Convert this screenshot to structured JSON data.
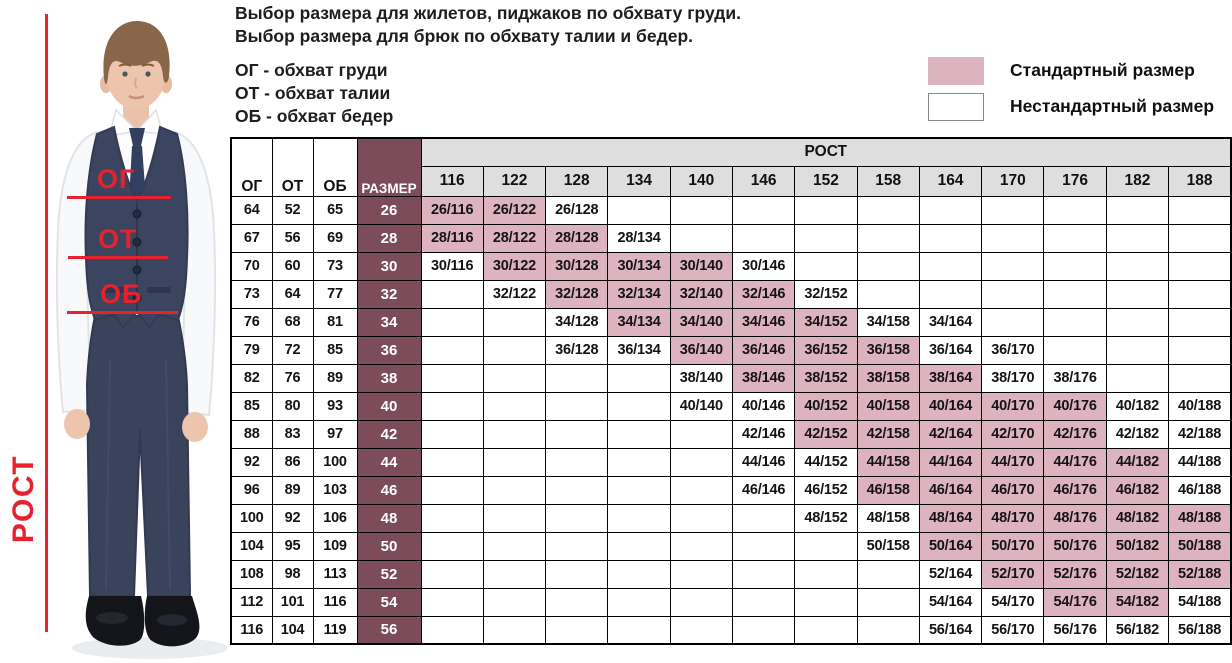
{
  "intro": {
    "line1": "Выбор размера для жилетов, пиджаков по обхвату груди.",
    "line2": "Выбор размера для брюк по обхвату талии и бедер."
  },
  "abbreviations": [
    "ОГ - обхват груди",
    "ОТ - обхват талии",
    "ОБ - обхват бедер"
  ],
  "legend": {
    "items": [
      {
        "label": "Стандартный размер",
        "type": "standard"
      },
      {
        "label": "Нестандартный размер",
        "type": "nonstandard"
      }
    ]
  },
  "figure": {
    "height_label": "РОСТ",
    "chest_label": "ОГ",
    "waist_label": "ОТ",
    "hips_label": "ОБ"
  },
  "colors": {
    "standard_pink": "#ddb3c0",
    "size_maroon": "#7c4c5b",
    "header_gray": "#dedede",
    "annotation_red": "#e7212e"
  },
  "chart_data": {
    "type": "table",
    "corner_headers": [
      "ОГ",
      "ОТ",
      "ОБ",
      "РАЗМЕР"
    ],
    "group_header": "РОСТ",
    "height_columns": [
      "116",
      "122",
      "128",
      "134",
      "140",
      "146",
      "152",
      "158",
      "164",
      "170",
      "176",
      "182",
      "188"
    ],
    "legend_note": "standard=true — розовая ячейка (стандартный размер), standard=false — белая (нестандартный)",
    "rows": [
      {
        "og": "64",
        "ot": "52",
        "ob": "65",
        "size": "26",
        "cells": [
          {
            "t": "26/116",
            "s": true
          },
          {
            "t": "26/122",
            "s": true
          },
          {
            "t": "26/128",
            "s": false
          },
          null,
          null,
          null,
          null,
          null,
          null,
          null,
          null,
          null,
          null
        ]
      },
      {
        "og": "67",
        "ot": "56",
        "ob": "69",
        "size": "28",
        "cells": [
          {
            "t": "28/116",
            "s": true
          },
          {
            "t": "28/122",
            "s": true
          },
          {
            "t": "28/128",
            "s": true
          },
          {
            "t": "28/134",
            "s": false
          },
          null,
          null,
          null,
          null,
          null,
          null,
          null,
          null,
          null
        ]
      },
      {
        "og": "70",
        "ot": "60",
        "ob": "73",
        "size": "30",
        "cells": [
          {
            "t": "30/116",
            "s": false
          },
          {
            "t": "30/122",
            "s": true
          },
          {
            "t": "30/128",
            "s": true
          },
          {
            "t": "30/134",
            "s": true
          },
          {
            "t": "30/140",
            "s": true
          },
          {
            "t": "30/146",
            "s": false
          },
          null,
          null,
          null,
          null,
          null,
          null,
          null
        ]
      },
      {
        "og": "73",
        "ot": "64",
        "ob": "77",
        "size": "32",
        "cells": [
          null,
          {
            "t": "32/122",
            "s": false
          },
          {
            "t": "32/128",
            "s": true
          },
          {
            "t": "32/134",
            "s": true
          },
          {
            "t": "32/140",
            "s": true
          },
          {
            "t": "32/146",
            "s": true
          },
          {
            "t": "32/152",
            "s": false
          },
          null,
          null,
          null,
          null,
          null,
          null
        ]
      },
      {
        "og": "76",
        "ot": "68",
        "ob": "81",
        "size": "34",
        "cells": [
          null,
          null,
          {
            "t": "34/128",
            "s": false
          },
          {
            "t": "34/134",
            "s": true
          },
          {
            "t": "34/140",
            "s": true
          },
          {
            "t": "34/146",
            "s": true
          },
          {
            "t": "34/152",
            "s": true
          },
          {
            "t": "34/158",
            "s": false
          },
          {
            "t": "34/164",
            "s": false
          },
          null,
          null,
          null,
          null
        ]
      },
      {
        "og": "79",
        "ot": "72",
        "ob": "85",
        "size": "36",
        "cells": [
          null,
          null,
          {
            "t": "36/128",
            "s": false
          },
          {
            "t": "36/134",
            "s": false
          },
          {
            "t": "36/140",
            "s": true
          },
          {
            "t": "36/146",
            "s": true
          },
          {
            "t": "36/152",
            "s": true
          },
          {
            "t": "36/158",
            "s": true
          },
          {
            "t": "36/164",
            "s": false
          },
          {
            "t": "36/170",
            "s": false
          },
          null,
          null,
          null
        ]
      },
      {
        "og": "82",
        "ot": "76",
        "ob": "89",
        "size": "38",
        "cells": [
          null,
          null,
          null,
          null,
          {
            "t": "38/140",
            "s": false
          },
          {
            "t": "38/146",
            "s": true
          },
          {
            "t": "38/152",
            "s": true
          },
          {
            "t": "38/158",
            "s": true
          },
          {
            "t": "38/164",
            "s": true
          },
          {
            "t": "38/170",
            "s": false
          },
          {
            "t": "38/176",
            "s": false
          },
          null,
          null
        ]
      },
      {
        "og": "85",
        "ot": "80",
        "ob": "93",
        "size": "40",
        "cells": [
          null,
          null,
          null,
          null,
          {
            "t": "40/140",
            "s": false
          },
          {
            "t": "40/146",
            "s": false
          },
          {
            "t": "40/152",
            "s": true
          },
          {
            "t": "40/158",
            "s": true
          },
          {
            "t": "40/164",
            "s": true
          },
          {
            "t": "40/170",
            "s": true
          },
          {
            "t": "40/176",
            "s": true
          },
          {
            "t": "40/182",
            "s": false
          },
          {
            "t": "40/188",
            "s": false
          }
        ]
      },
      {
        "og": "88",
        "ot": "83",
        "ob": "97",
        "size": "42",
        "cells": [
          null,
          null,
          null,
          null,
          null,
          {
            "t": "42/146",
            "s": false
          },
          {
            "t": "42/152",
            "s": true
          },
          {
            "t": "42/158",
            "s": true
          },
          {
            "t": "42/164",
            "s": true
          },
          {
            "t": "42/170",
            "s": true
          },
          {
            "t": "42/176",
            "s": true
          },
          {
            "t": "42/182",
            "s": false
          },
          {
            "t": "42/188",
            "s": false
          }
        ]
      },
      {
        "og": "92",
        "ot": "86",
        "ob": "100",
        "size": "44",
        "cells": [
          null,
          null,
          null,
          null,
          null,
          {
            "t": "44/146",
            "s": false
          },
          {
            "t": "44/152",
            "s": false
          },
          {
            "t": "44/158",
            "s": true
          },
          {
            "t": "44/164",
            "s": true
          },
          {
            "t": "44/170",
            "s": true
          },
          {
            "t": "44/176",
            "s": true
          },
          {
            "t": "44/182",
            "s": true
          },
          {
            "t": "44/188",
            "s": false
          }
        ]
      },
      {
        "og": "96",
        "ot": "89",
        "ob": "103",
        "size": "46",
        "cells": [
          null,
          null,
          null,
          null,
          null,
          {
            "t": "46/146",
            "s": false
          },
          {
            "t": "46/152",
            "s": false
          },
          {
            "t": "46/158",
            "s": true
          },
          {
            "t": "46/164",
            "s": true
          },
          {
            "t": "46/170",
            "s": true
          },
          {
            "t": "46/176",
            "s": true
          },
          {
            "t": "46/182",
            "s": true
          },
          {
            "t": "46/188",
            "s": false
          }
        ]
      },
      {
        "og": "100",
        "ot": "92",
        "ob": "106",
        "size": "48",
        "cells": [
          null,
          null,
          null,
          null,
          null,
          null,
          {
            "t": "48/152",
            "s": false
          },
          {
            "t": "48/158",
            "s": false
          },
          {
            "t": "48/164",
            "s": true
          },
          {
            "t": "48/170",
            "s": true
          },
          {
            "t": "48/176",
            "s": true
          },
          {
            "t": "48/182",
            "s": true
          },
          {
            "t": "48/188",
            "s": true
          }
        ]
      },
      {
        "og": "104",
        "ot": "95",
        "ob": "109",
        "size": "50",
        "cells": [
          null,
          null,
          null,
          null,
          null,
          null,
          null,
          {
            "t": "50/158",
            "s": false
          },
          {
            "t": "50/164",
            "s": true
          },
          {
            "t": "50/170",
            "s": true
          },
          {
            "t": "50/176",
            "s": true
          },
          {
            "t": "50/182",
            "s": true
          },
          {
            "t": "50/188",
            "s": true
          }
        ]
      },
      {
        "og": "108",
        "ot": "98",
        "ob": "113",
        "size": "52",
        "cells": [
          null,
          null,
          null,
          null,
          null,
          null,
          null,
          null,
          {
            "t": "52/164",
            "s": false
          },
          {
            "t": "52/170",
            "s": true
          },
          {
            "t": "52/176",
            "s": true
          },
          {
            "t": "52/182",
            "s": true
          },
          {
            "t": "52/188",
            "s": true
          }
        ]
      },
      {
        "og": "112",
        "ot": "101",
        "ob": "116",
        "size": "54",
        "cells": [
          null,
          null,
          null,
          null,
          null,
          null,
          null,
          null,
          {
            "t": "54/164",
            "s": false
          },
          {
            "t": "54/170",
            "s": false
          },
          {
            "t": "54/176",
            "s": true
          },
          {
            "t": "54/182",
            "s": true
          },
          {
            "t": "54/188",
            "s": false
          }
        ]
      },
      {
        "og": "116",
        "ot": "104",
        "ob": "119",
        "size": "56",
        "cells": [
          null,
          null,
          null,
          null,
          null,
          null,
          null,
          null,
          {
            "t": "56/164",
            "s": false
          },
          {
            "t": "56/170",
            "s": false
          },
          {
            "t": "56/176",
            "s": false
          },
          {
            "t": "56/182",
            "s": false
          },
          {
            "t": "56/188",
            "s": false
          }
        ]
      }
    ]
  }
}
